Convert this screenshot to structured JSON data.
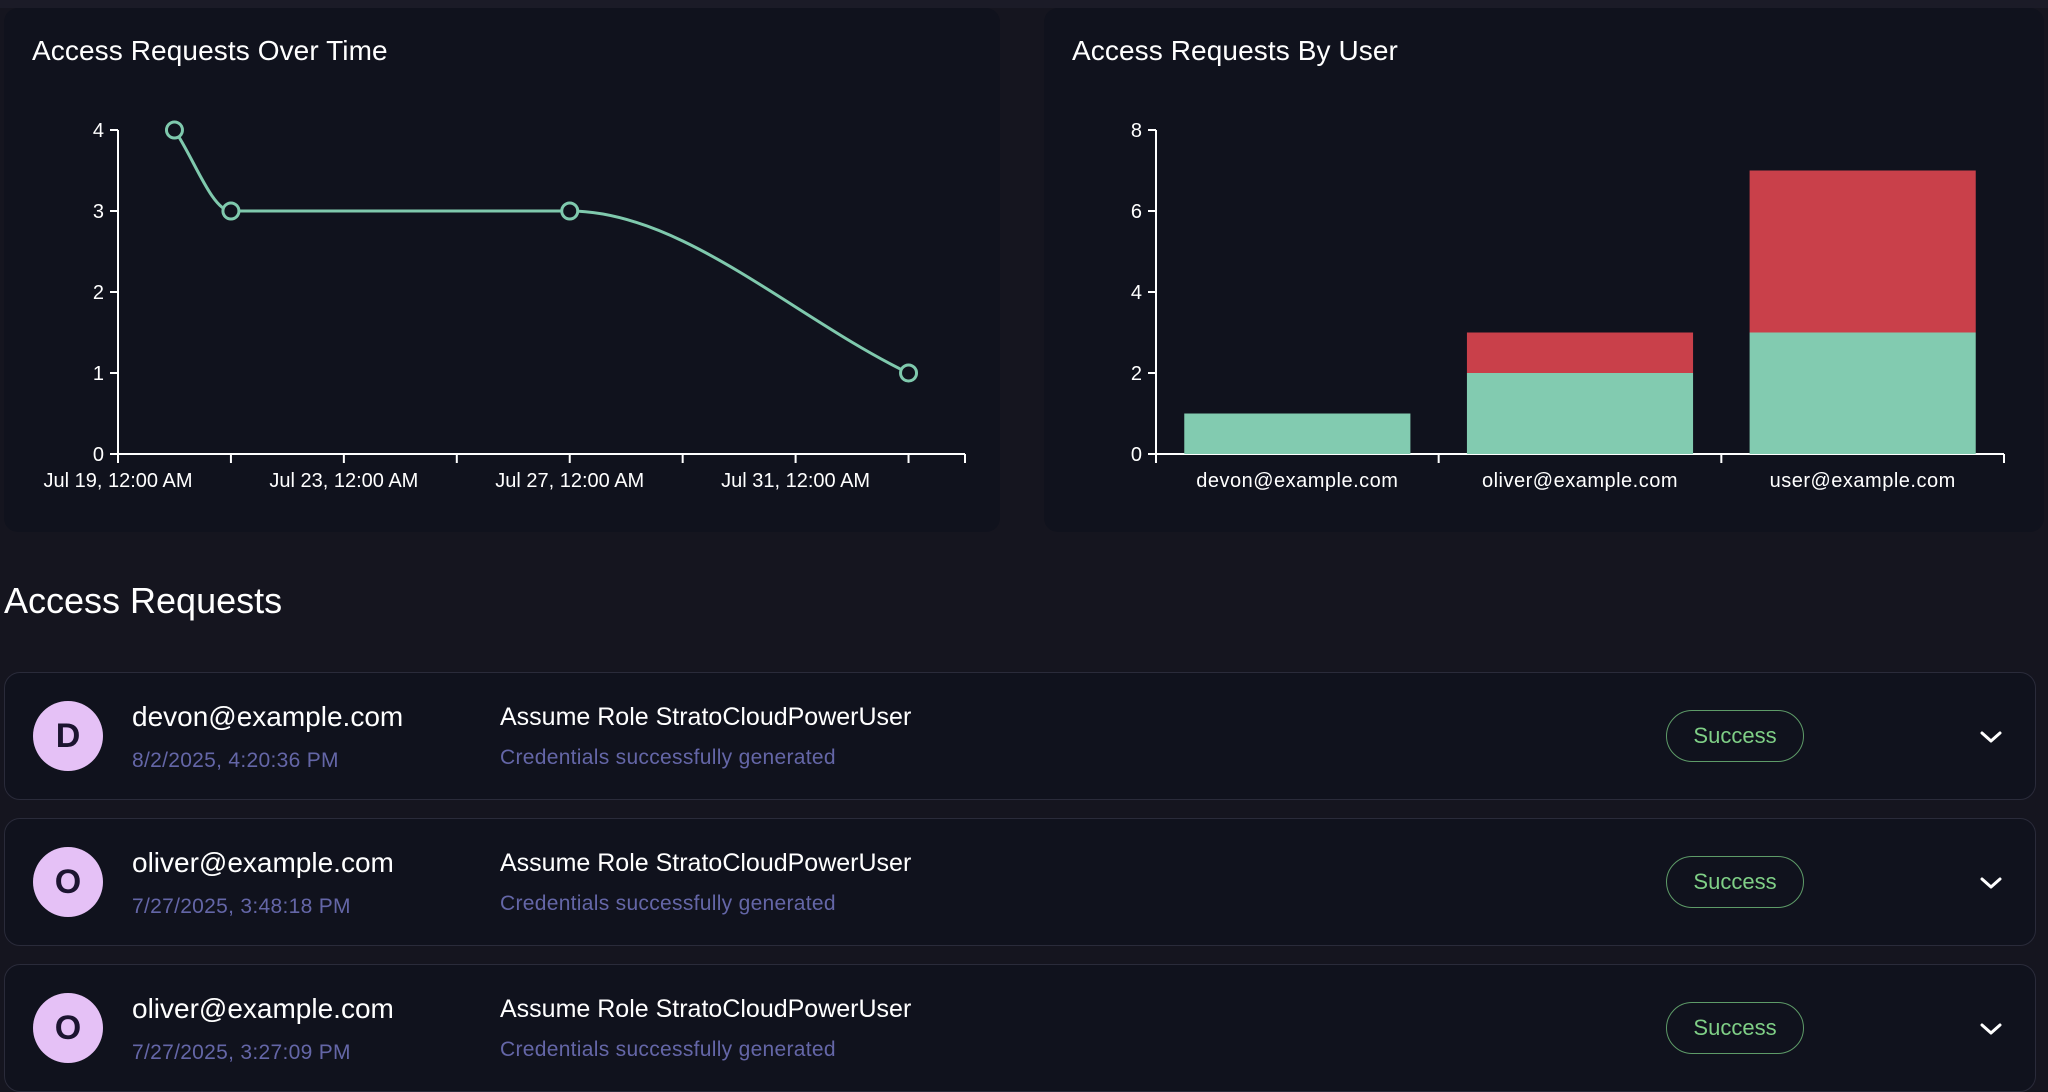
{
  "charts": {
    "over_time": {
      "title": "Access Requests Over Time"
    },
    "by_user": {
      "title": "Access Requests By User"
    }
  },
  "chart_data": [
    {
      "type": "line",
      "title": "Access Requests Over Time",
      "xlabel": "",
      "ylabel": "",
      "x": [
        "Jul 20",
        "Jul 21",
        "Jul 27",
        "Aug 2"
      ],
      "values": [
        4,
        3,
        3,
        1
      ],
      "xlim": [
        "Jul 19",
        "Aug 3"
      ],
      "ylim": [
        0,
        4
      ],
      "yticks": [
        0,
        1,
        2,
        3,
        4
      ],
      "xtick_labels": [
        "Jul 19, 12:00 AM",
        "",
        "Jul 23, 12:00 AM",
        "",
        "Jul 27, 12:00 AM",
        "",
        "Jul 31, 12:00 AM",
        "",
        ""
      ],
      "color": "#7fc9ad",
      "grid": false
    },
    {
      "type": "bar",
      "stacked": true,
      "title": "Access Requests By User",
      "xlabel": "",
      "ylabel": "",
      "categories": [
        "devon@example.com",
        "oliver@example.com",
        "user@example.com"
      ],
      "series": [
        {
          "values": [
            1,
            2,
            3
          ],
          "color": "#82cbb0"
        },
        {
          "values": [
            0,
            1,
            4
          ],
          "color": "#c9404a"
        }
      ],
      "ylim": [
        0,
        8
      ],
      "yticks": [
        0,
        2,
        4,
        6,
        8
      ],
      "grid": false
    }
  ],
  "section": {
    "title": "Access Requests"
  },
  "requests": [
    {
      "initial": "D",
      "email": "devon@example.com",
      "timestamp": "8/2/2025, 4:20:36 PM",
      "action": "Assume Role StratoCloudPowerUser",
      "detail": "Credentials successfully generated",
      "status": "Success"
    },
    {
      "initial": "O",
      "email": "oliver@example.com",
      "timestamp": "7/27/2025, 3:48:18 PM",
      "action": "Assume Role StratoCloudPowerUser",
      "detail": "Credentials successfully generated",
      "status": "Success"
    },
    {
      "initial": "O",
      "email": "oliver@example.com",
      "timestamp": "7/27/2025, 3:27:09 PM",
      "action": "Assume Role StratoCloudPowerUser",
      "detail": "Credentials successfully generated",
      "status": "Success"
    }
  ],
  "icons": {
    "expand": "chevron-down-icon"
  }
}
